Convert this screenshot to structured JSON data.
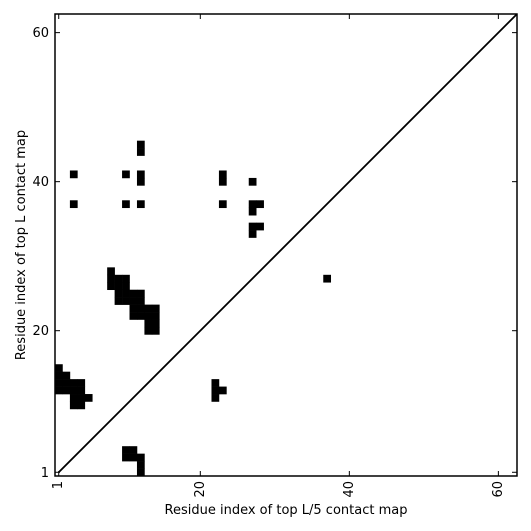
{
  "chart_data": {
    "type": "heatmap",
    "xlabel": "Residue index of top L/5 contact map",
    "ylabel": "Residue index of top L contact map",
    "xlim": [
      0.5,
      62.5
    ],
    "ylim": [
      0.5,
      62.5
    ],
    "xticks": [
      1,
      20,
      40,
      60
    ],
    "yticks": [
      1,
      20,
      40,
      60
    ],
    "diagonal": true,
    "cell_color": "#000000",
    "grid": false,
    "contacts_upper": [
      [
        3,
        41
      ],
      [
        3,
        37
      ],
      [
        10,
        41
      ],
      [
        10,
        37
      ],
      [
        12,
        45
      ],
      [
        12,
        44
      ],
      [
        12,
        41
      ],
      [
        12,
        40
      ],
      [
        12,
        37
      ],
      [
        23,
        41
      ],
      [
        23,
        40
      ],
      [
        23,
        37
      ],
      [
        27,
        40
      ],
      [
        27,
        37
      ],
      [
        27,
        36
      ],
      [
        28,
        37
      ],
      [
        27,
        34
      ],
      [
        27,
        33
      ],
      [
        28,
        34
      ],
      [
        37,
        27
      ]
    ],
    "contacts_lower": [
      [
        1,
        15
      ],
      [
        1,
        14
      ],
      [
        1,
        13
      ],
      [
        1,
        12
      ],
      [
        2,
        14
      ],
      [
        2,
        13
      ],
      [
        2,
        12
      ],
      [
        3,
        13
      ],
      [
        3,
        12
      ],
      [
        3,
        11
      ],
      [
        3,
        10
      ],
      [
        4,
        13
      ],
      [
        4,
        12
      ],
      [
        4,
        11
      ],
      [
        4,
        10
      ],
      [
        5,
        11
      ],
      [
        8,
        28
      ],
      [
        8,
        27
      ],
      [
        8,
        26
      ],
      [
        9,
        27
      ],
      [
        9,
        26
      ],
      [
        9,
        25
      ],
      [
        9,
        24
      ],
      [
        10,
        27
      ],
      [
        10,
        26
      ],
      [
        10,
        25
      ],
      [
        10,
        24
      ],
      [
        11,
        25
      ],
      [
        11,
        24
      ],
      [
        11,
        23
      ],
      [
        11,
        22
      ],
      [
        12,
        25
      ],
      [
        12,
        24
      ],
      [
        12,
        23
      ],
      [
        12,
        22
      ],
      [
        13,
        23
      ],
      [
        13,
        22
      ],
      [
        13,
        21
      ],
      [
        13,
        20
      ],
      [
        14,
        23
      ],
      [
        14,
        22
      ],
      [
        14,
        21
      ],
      [
        14,
        20
      ],
      [
        22,
        13
      ],
      [
        22,
        12
      ],
      [
        22,
        11
      ],
      [
        23,
        12
      ],
      [
        10,
        4
      ],
      [
        10,
        3
      ],
      [
        11,
        4
      ],
      [
        11,
        3
      ],
      [
        12,
        3
      ],
      [
        12,
        2
      ],
      [
        12,
        1
      ]
    ]
  }
}
